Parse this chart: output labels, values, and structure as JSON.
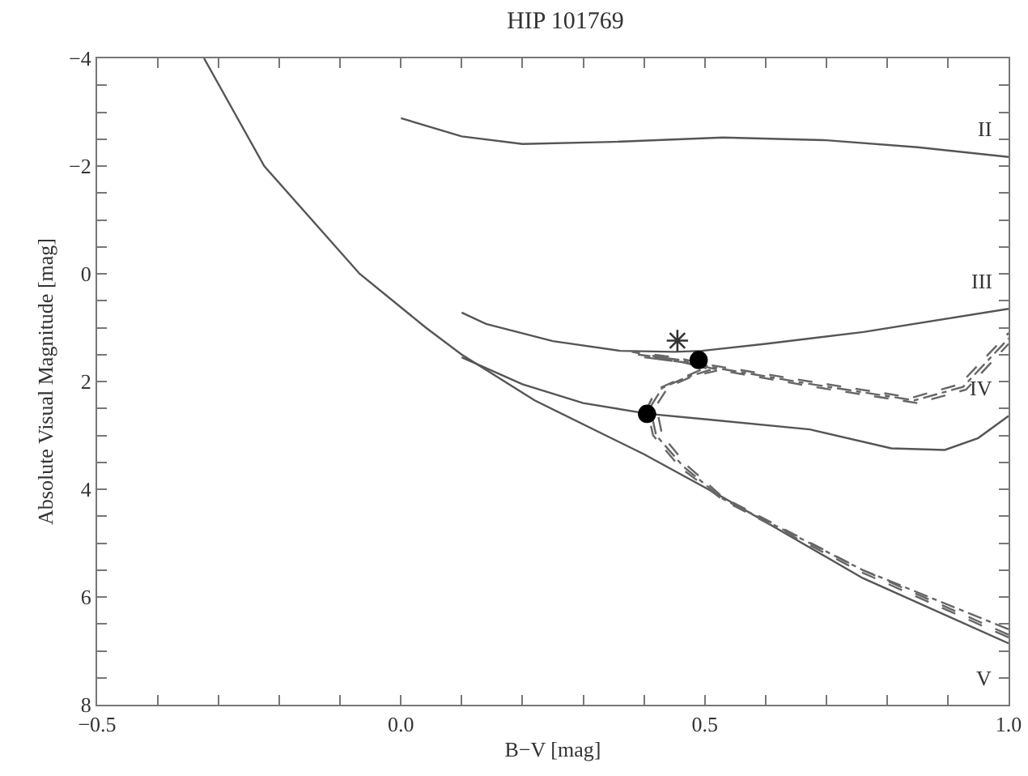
{
  "chart_data": {
    "type": "line",
    "title": "HIP 101769",
    "xlabel": "B−V [mag]",
    "ylabel": "Absolute Visual Magnitude [mag]",
    "xlim": [
      -0.5,
      1.0
    ],
    "ylim": [
      8,
      -4
    ],
    "xticks": [
      {
        "value": -0.5,
        "label": "−0.5"
      },
      {
        "value": -0.4,
        "label": null
      },
      {
        "value": -0.3,
        "label": null
      },
      {
        "value": -0.2,
        "label": null
      },
      {
        "value": -0.1,
        "label": null
      },
      {
        "value": 0,
        "label": "0.0"
      },
      {
        "value": 0.1,
        "label": null
      },
      {
        "value": 0.2,
        "label": null
      },
      {
        "value": 0.3,
        "label": null
      },
      {
        "value": 0.4,
        "label": null
      },
      {
        "value": 0.5,
        "label": "0.5"
      },
      {
        "value": 0.6,
        "label": null
      },
      {
        "value": 0.7,
        "label": null
      },
      {
        "value": 0.8,
        "label": null
      },
      {
        "value": 0.9,
        "label": null
      },
      {
        "value": 1.0,
        "label": "1.0"
      }
    ],
    "yticks": [
      {
        "value": -4,
        "label": "−4"
      },
      {
        "value": -3.5,
        "label": null
      },
      {
        "value": -3,
        "label": null
      },
      {
        "value": -2.5,
        "label": null
      },
      {
        "value": -2,
        "label": "−2"
      },
      {
        "value": -1.5,
        "label": null
      },
      {
        "value": -1,
        "label": null
      },
      {
        "value": -0.5,
        "label": null
      },
      0,
      {
        "value": 0.5,
        "label": null
      },
      {
        "value": 1,
        "label": null
      },
      {
        "value": 1.5,
        "label": null
      },
      2,
      {
        "value": 2.5,
        "label": null
      },
      {
        "value": 3,
        "label": null
      },
      {
        "value": 3.5,
        "label": null
      },
      4,
      {
        "value": 4.5,
        "label": null
      },
      {
        "value": 5,
        "label": null
      },
      {
        "value": 5.5,
        "label": null
      },
      6,
      {
        "value": 6.5,
        "label": null
      },
      {
        "value": 7,
        "label": null
      },
      {
        "value": 7.5,
        "label": null
      },
      8
    ],
    "grid": false,
    "legend": false,
    "series": [
      {
        "name": "V",
        "color": "#555555",
        "line_style": "solid",
        "marker": "none",
        "x": [
          -0.324,
          -0.225,
          -0.068,
          0.041,
          0.1,
          0.22,
          0.4,
          0.53,
          0.76,
          1.0
        ],
        "values": [
          -4,
          -2,
          0,
          1,
          1.5,
          2.35,
          3.35,
          4.15,
          5.65,
          6.86
        ]
      },
      {
        "name": "IV",
        "color": "#555555",
        "line_style": "solid",
        "marker": "none",
        "x": [
          0.1,
          0.2,
          0.3,
          0.407,
          0.5,
          0.673,
          0.807,
          0.895,
          0.95,
          1.0
        ],
        "values": [
          1.55,
          2.05,
          2.4,
          2.6,
          2.7,
          2.89,
          3.24,
          3.27,
          3.05,
          2.64
        ]
      },
      {
        "name": "III",
        "color": "#555555",
        "line_style": "solid",
        "marker": "none",
        "x": [
          0.1,
          0.14,
          0.25,
          0.361,
          0.45,
          0.495,
          0.6,
          0.761,
          1.0
        ],
        "values": [
          0.72,
          0.93,
          1.25,
          1.43,
          1.45,
          1.43,
          1.3,
          1.08,
          0.65
        ]
      },
      {
        "name": "II",
        "color": "#555555",
        "line_style": "solid",
        "marker": "none",
        "x": [
          0.0,
          0.1,
          0.2,
          0.35,
          0.53,
          0.7,
          0.85,
          1.0
        ],
        "values": [
          -2.89,
          -2.55,
          -2.41,
          -2.45,
          -2.53,
          -2.48,
          -2.35,
          -2.17
        ]
      },
      {
        "color": "#666666",
        "line_style": "dashed",
        "marker": "none",
        "x": [
          1.0,
          0.76,
          0.53,
          0.46,
          0.415,
          0.405,
          0.42,
          0.46,
          0.5,
          0.45,
          0.38,
          0.45,
          0.513,
          0.673,
          0.841,
          0.92,
          1.0
        ],
        "values": [
          6.75,
          5.55,
          4.2,
          3.6,
          3.0,
          2.5,
          2.15,
          1.95,
          1.75,
          1.6,
          1.45,
          1.55,
          1.7,
          2.0,
          2.3,
          2.05,
          1.1
        ]
      },
      {
        "color": "#666666",
        "line_style": "dashed",
        "marker": "none",
        "x": [
          1.0,
          0.76,
          0.53,
          0.47,
          0.43,
          0.42,
          0.44,
          0.48,
          0.52,
          0.47,
          0.4,
          0.47,
          0.53,
          0.68,
          0.85,
          0.93,
          1.0
        ],
        "values": [
          6.7,
          5.5,
          4.15,
          3.55,
          3.0,
          2.45,
          2.1,
          1.9,
          1.8,
          1.65,
          1.55,
          1.65,
          1.8,
          2.1,
          2.4,
          2.15,
          1.3
        ]
      },
      {
        "color": "#666666",
        "line_style": "dotted",
        "marker": "none",
        "x": [
          1.0,
          0.76,
          0.53,
          0.465,
          0.42,
          0.41,
          0.43,
          0.47,
          0.51,
          0.46,
          0.39,
          0.46,
          0.52,
          0.676,
          0.845,
          0.925,
          1.0
        ],
        "values": [
          6.6,
          5.5,
          4.18,
          3.58,
          3.0,
          2.48,
          2.12,
          1.92,
          1.78,
          1.62,
          1.5,
          1.6,
          1.75,
          2.05,
          2.35,
          2.1,
          1.2
        ]
      },
      {
        "type": "scatter",
        "color": "#000000",
        "marker": "circle",
        "x": [
          0.405,
          0.49
        ],
        "values": [
          2.6,
          1.6
        ]
      },
      {
        "type": "scatter",
        "color": "#333333",
        "marker": "cross",
        "x": [
          0.455
        ],
        "values": [
          1.24
        ]
      }
    ]
  }
}
